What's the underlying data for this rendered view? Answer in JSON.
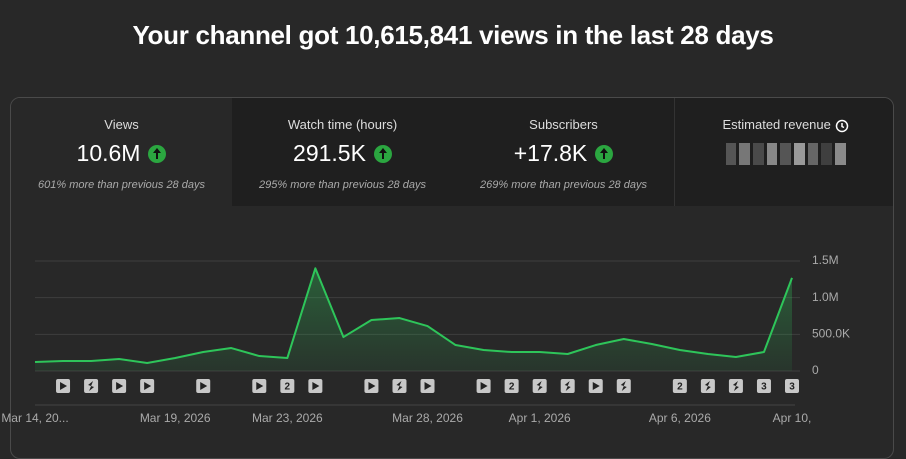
{
  "header": {
    "title": "Your channel got 10,615,841 views in the last 28 days"
  },
  "tabs": [
    {
      "label": "Views",
      "value": "10.6M",
      "note": "601% more than previous 28 days"
    },
    {
      "label": "Watch time (hours)",
      "value": "291.5K",
      "note": "295% more than previous 28 days"
    },
    {
      "label": "Subscribers",
      "value": "+17.8K",
      "note": "269% more than previous 28 days"
    },
    {
      "label": "Estimated revenue"
    }
  ],
  "chart_data": {
    "type": "line",
    "categories": [
      "Mar 14, 20...",
      null,
      null,
      null,
      null,
      "Mar 19, 2026",
      null,
      null,
      null,
      "Mar 23, 2026",
      null,
      null,
      null,
      null,
      "Mar 28, 2026",
      null,
      null,
      null,
      "Apr 1, 2026",
      null,
      null,
      null,
      null,
      "Apr 6, 2026",
      null,
      null,
      null,
      "Apr 10,"
    ],
    "series": [
      {
        "name": "Views",
        "color": "#2ec55a",
        "values": [
          123000,
          136000,
          136000,
          163000,
          109000,
          177000,
          259000,
          313000,
          204000,
          177000,
          1400000,
          463000,
          695000,
          722000,
          613000,
          354000,
          286000,
          259000,
          259000,
          232000,
          354000,
          436000,
          368000,
          286000,
          232000,
          191000,
          259000,
          1270000
        ]
      }
    ],
    "uploads": [
      null,
      "video",
      "short",
      "video",
      "video",
      null,
      "video",
      null,
      "video",
      "2",
      "video",
      null,
      "video",
      "short",
      "video",
      null,
      "video",
      "2",
      "short",
      "short",
      "video",
      "short",
      null,
      "2",
      "short",
      "short",
      "3",
      "3"
    ],
    "ylim": [
      0,
      1500000
    ],
    "yticks": [
      0,
      {
        "value": 500000,
        "label": "500.0K"
      },
      {
        "value": 1000000,
        "label": "1.0M"
      },
      {
        "value": 1500000,
        "label": "1.5M"
      }
    ],
    "grid": true
  }
}
